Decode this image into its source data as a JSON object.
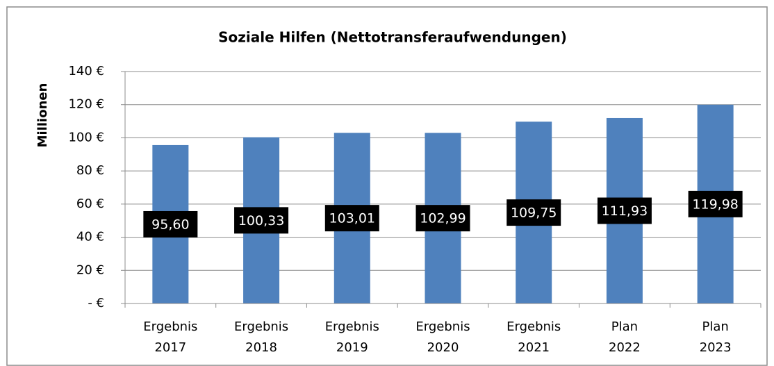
{
  "chart_data": {
    "type": "bar",
    "title": "Soziale Hilfen (Nettotransferaufwendungen)",
    "y_label": "Millionen",
    "categories": [
      "Ergebnis 2017",
      "Ergebnis 2018",
      "Ergebnis 2019",
      "Ergebnis 2020",
      "Ergebnis 2021",
      "Plan 2022",
      "Plan 2023"
    ],
    "values": [
      95.6,
      100.33,
      103.01,
      102.99,
      109.75,
      111.93,
      119.98
    ],
    "value_labels": [
      "95,60",
      "100,33",
      "103,01",
      "102,99",
      "109,75",
      "111,93",
      "119,98"
    ],
    "color": "#4f81bd",
    "ylim": [
      0,
      140
    ],
    "yticks": [
      {
        "value": 0,
        "label": "-  €"
      },
      {
        "value": 20,
        "label": "20 €"
      },
      {
        "value": 40,
        "label": "40 €"
      },
      {
        "value": 60,
        "label": "60 €"
      },
      {
        "value": 80,
        "label": "80 €"
      },
      {
        "value": 100,
        "label": "100 €"
      },
      {
        "value": 120,
        "label": "120 €"
      },
      {
        "value": 140,
        "label": "140 €"
      }
    ],
    "grid": true
  }
}
